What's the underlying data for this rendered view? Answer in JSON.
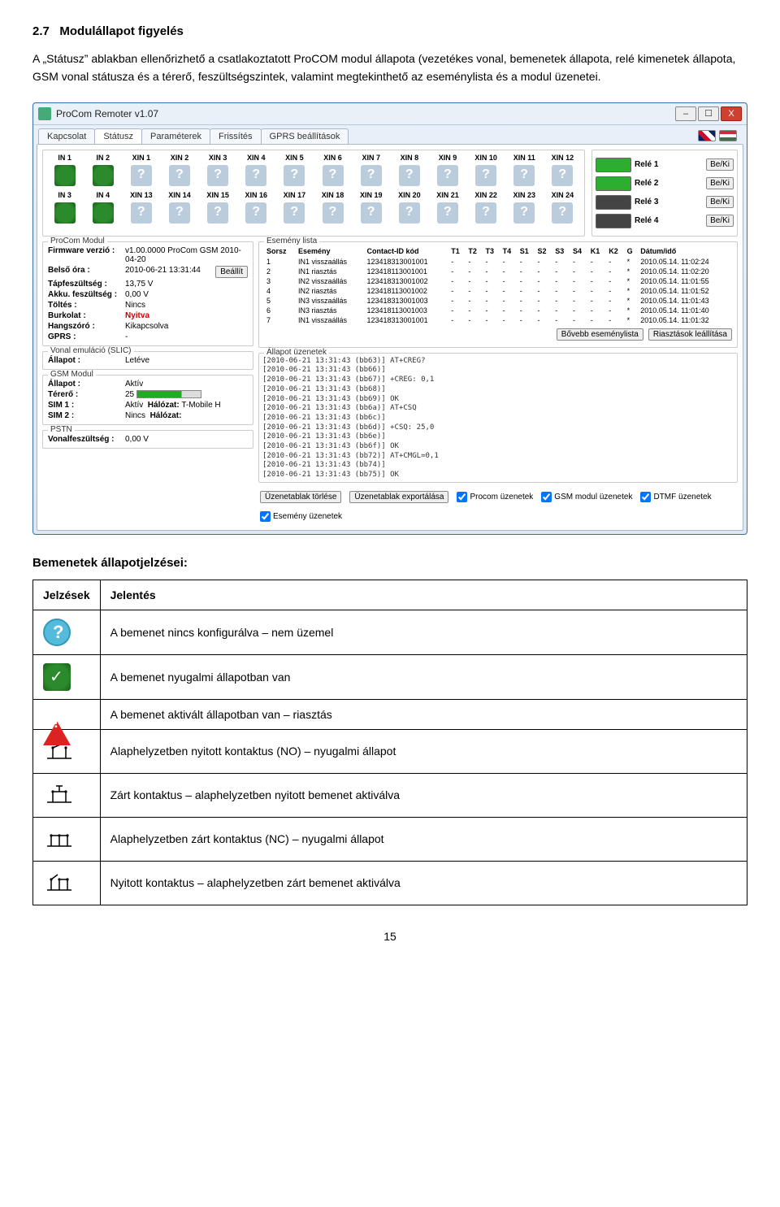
{
  "section": {
    "number": "2.7",
    "title": "Modulállapot figyelés",
    "body": "A „Státusz” ablakban ellenőrizhető a csatlakoztatott ProCOM modul állapota (vezetékes vonal, bemenetek állapota, relé kimenetek állapota, GSM vonal státusza és a térerő, feszültségszintek, valamint megtekinthető az eseménylista és a modul üzenetei."
  },
  "window": {
    "title": "ProCom Remoter v1.07",
    "controls": {
      "min": "–",
      "max": "☐",
      "close": "X"
    },
    "tabs": [
      "Kapcsolat",
      "Státusz",
      "Paraméterek",
      "Frissítés",
      "GPRS beállítások"
    ],
    "active_tab": "Státusz",
    "input_labels_top": [
      "IN 1",
      "IN 2",
      "XIN 1",
      "XIN 2",
      "XIN 3",
      "XIN 4",
      "XIN 5",
      "XIN 6",
      "XIN 7",
      "XIN 8",
      "XIN 9",
      "XIN 10",
      "XIN 11",
      "XIN 12"
    ],
    "input_labels_bot": [
      "IN 3",
      "IN 4",
      "XIN 13",
      "XIN 14",
      "XIN 15",
      "XIN 16",
      "XIN 17",
      "XIN 18",
      "XIN 19",
      "XIN 20",
      "XIN 21",
      "XIN 22",
      "XIN 23",
      "XIN 24"
    ],
    "input_state_top": [
      "g",
      "g",
      "q",
      "q",
      "q",
      "q",
      "q",
      "q",
      "q",
      "q",
      "q",
      "q",
      "q",
      "q"
    ],
    "input_state_bot": [
      "g",
      "g",
      "q",
      "q",
      "q",
      "q",
      "q",
      "q",
      "q",
      "q",
      "q",
      "q",
      "q",
      "q"
    ],
    "relays": [
      {
        "name": "Relé 1",
        "btn": "Be/Ki",
        "on": true
      },
      {
        "name": "Relé 2",
        "btn": "Be/Ki",
        "on": true
      },
      {
        "name": "Relé 3",
        "btn": "Be/Ki",
        "on": false
      },
      {
        "name": "Relé 4",
        "btn": "Be/Ki",
        "on": false
      }
    ],
    "procom": {
      "legend": "ProCom Modul",
      "firmware_k": "Firmware verzió :",
      "firmware_v": "v1.00.0000 ProCom GSM 2010-04-20",
      "clock_k": "Belső óra :",
      "clock_v": "2010-06-21 13:31:44",
      "clock_btn": "Beállít",
      "volt_k": "Tápfeszültség :",
      "volt_v": "13,75 V",
      "akk_k": "Akku. feszültség :",
      "akk_v": "0,00 V",
      "charge_k": "Töltés :",
      "charge_v": "Nincs",
      "cover_k": "Burkolat :",
      "cover_v": "Nyitva",
      "spk_k": "Hangszóró :",
      "spk_v": "Kikapcsolva",
      "gprs_k": "GPRS :",
      "gprs_v": "-"
    },
    "slic": {
      "legend": "Vonal emuláció (SLIC)",
      "k": "Állapot :",
      "v": "Letéve"
    },
    "gsm": {
      "legend": "GSM Modul",
      "state_k": "Állapot :",
      "state_v": "Aktív",
      "sig_k": "Térerő :",
      "sig_v": "25",
      "sim1_k": "SIM 1 :",
      "sim1_v": "Aktív",
      "net1_k": "Hálózat:",
      "net1_v": "T-Mobile H",
      "sim2_k": "SIM 2 :",
      "sim2_v": "Nincs",
      "net2_k": "Hálózat:",
      "net2_v": ""
    },
    "pstn": {
      "legend": "PSTN",
      "k": "Vonalfeszültség :",
      "v": "0,00 V"
    },
    "eventlist": {
      "legend": "Esemény lista",
      "columns": [
        "Sorsz",
        "Esemény",
        "Contact-ID kód",
        "T1",
        "T2",
        "T3",
        "T4",
        "S1",
        "S2",
        "S3",
        "S4",
        "K1",
        "K2",
        "G",
        "Dátum/idő"
      ],
      "rows": [
        [
          "1",
          "IN1 visszaállás",
          "123418313001001",
          "-",
          "-",
          "-",
          "-",
          "-",
          "-",
          "-",
          "-",
          "-",
          "-",
          "*",
          "2010.05.14. 11:02:24"
        ],
        [
          "2",
          "IN1 riasztás",
          "123418113001001",
          "-",
          "-",
          "-",
          "-",
          "-",
          "-",
          "-",
          "-",
          "-",
          "-",
          "*",
          "2010.05.14. 11:02:20"
        ],
        [
          "3",
          "IN2 visszaállás",
          "123418313001002",
          "-",
          "-",
          "-",
          "-",
          "-",
          "-",
          "-",
          "-",
          "-",
          "-",
          "*",
          "2010.05.14. 11:01:55"
        ],
        [
          "4",
          "IN2 riasztás",
          "123418113001002",
          "-",
          "-",
          "-",
          "-",
          "-",
          "-",
          "-",
          "-",
          "-",
          "-",
          "*",
          "2010.05.14. 11:01:52"
        ],
        [
          "5",
          "IN3 visszaállás",
          "123418313001003",
          "-",
          "-",
          "-",
          "-",
          "-",
          "-",
          "-",
          "-",
          "-",
          "-",
          "*",
          "2010.05.14. 11:01:43"
        ],
        [
          "6",
          "IN3 riasztás",
          "123418113001003",
          "-",
          "-",
          "-",
          "-",
          "-",
          "-",
          "-",
          "-",
          "-",
          "-",
          "*",
          "2010.05.14. 11:01:40"
        ],
        [
          "7",
          "IN1 visszaállás",
          "123418313001001",
          "-",
          "-",
          "-",
          "-",
          "-",
          "-",
          "-",
          "-",
          "-",
          "-",
          "*",
          "2010.05.14. 11:01:32"
        ]
      ],
      "btn_more": "Bővebb eseménylista",
      "btn_stop": "Riasztások leállítása"
    },
    "msgs": {
      "legend": "Állapot üzenetek",
      "lines": "[2010-06-21 13:31:43 (bb63)] AT+CREG?\n[2010-06-21 13:31:43 (bb66)]\n[2010-06-21 13:31:43 (bb67)] +CREG: 0,1\n[2010-06-21 13:31:43 (bb68)]\n[2010-06-21 13:31:43 (bb69)] OK\n[2010-06-21 13:31:43 (bb6a)] AT+CSQ\n[2010-06-21 13:31:43 (bb6c)]\n[2010-06-21 13:31:43 (bb6d)] +CSQ: 25,0\n[2010-06-21 13:31:43 (bb6e)]\n[2010-06-21 13:31:43 (bb6f)] OK\n[2010-06-21 13:31:43 (bb72)] AT+CMGL=0,1\n[2010-06-21 13:31:43 (bb74)]\n[2010-06-21 13:31:43 (bb75)] OK"
    },
    "bottom": {
      "btn_clear": "Üzenetablak törlése",
      "btn_export": "Üzenetablak exportálása",
      "chk1": "Procom üzenetek",
      "chk2": "GSM modul üzenetek",
      "chk3": "DTMF üzenetek",
      "chk4": "Esemény üzenetek"
    }
  },
  "meanings": {
    "heading": "Bemenetek állapotjelzései:",
    "col1": "Jelzések",
    "col2": "Jelentés",
    "rows": [
      "A bemenet nincs konfigurálva – nem üzemel",
      "A bemenet nyugalmi állapotban van",
      "A bemenet aktivált állapotban van – riasztás",
      "Alaphelyzetben nyitott kontaktus (NO) – nyugalmi állapot",
      "Zárt kontaktus – alaphelyzetben nyitott bemenet aktiválva",
      "Alaphelyzetben zárt kontaktus (NC) – nyugalmi állapot",
      "Nyitott kontaktus – alaphelyzetben zárt bemenet aktiválva"
    ]
  },
  "pagenum": "15"
}
